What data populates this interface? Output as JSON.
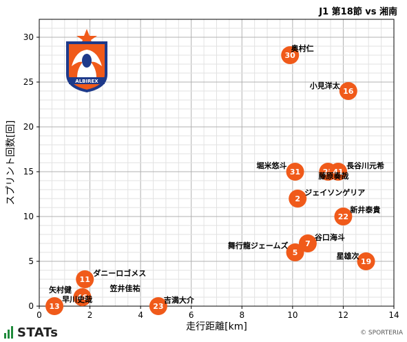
{
  "header": {
    "match_title": "J1 第18節 vs 湘南"
  },
  "branding": {
    "logo_text": "STATs",
    "copyright": "© SPORTERIA",
    "crest_text": "ALBIREX"
  },
  "colors": {
    "marker": "#f05a1a",
    "marker_text": "#ffffff",
    "label": "#000000",
    "grid": "#b8b8b8",
    "crest_blue": "#1e3a8a",
    "crest_orange": "#f05a1a"
  },
  "chart_data": {
    "type": "scatter",
    "xlabel": "走行距離[km]",
    "ylabel": "スプリント回数[回]",
    "xlim": [
      0,
      14
    ],
    "ylim": [
      0,
      32
    ],
    "xticks": [
      0,
      2,
      4,
      6,
      8,
      10,
      12,
      14
    ],
    "yticks": [
      0,
      5,
      10,
      15,
      20,
      25,
      30
    ],
    "grid": true,
    "points": [
      {
        "number": "30",
        "name": "奥村仁",
        "x": 9.9,
        "y": 28
      },
      {
        "number": "16",
        "name": "小見洋太",
        "x": 12.2,
        "y": 24
      },
      {
        "number": "31",
        "name": "堀米悠斗",
        "x": 10.1,
        "y": 15
      },
      {
        "number": "25",
        "name": "藤原奏哉",
        "x": 11.4,
        "y": 15
      },
      {
        "number": "41",
        "name": "長谷川元希",
        "x": 11.8,
        "y": 15
      },
      {
        "number": "2",
        "name": "ジェイソンゲリア",
        "x": 10.2,
        "y": 12
      },
      {
        "number": "22",
        "name": "新井泰貴",
        "x": 12.0,
        "y": 10
      },
      {
        "number": "7",
        "name": "谷口海斗",
        "x": 10.6,
        "y": 7
      },
      {
        "number": "5",
        "name": "舞行龍ジェームズ",
        "x": 10.1,
        "y": 6
      },
      {
        "number": "19",
        "name": "星雄次",
        "x": 12.9,
        "y": 5
      },
      {
        "number": "11",
        "name": "ダニーロゴメス",
        "x": 1.8,
        "y": 3
      },
      {
        "number": "46",
        "name": "笠井佳祐",
        "x": 1.7,
        "y": 1
      },
      {
        "number": "13",
        "name": "矢村健",
        "x": 0.6,
        "y": 0
      },
      {
        "number": "",
        "name": "早川史哉",
        "x": 0.9,
        "y": 0
      },
      {
        "number": "23",
        "name": "吉満大介",
        "x": 4.7,
        "y": 0
      }
    ]
  }
}
